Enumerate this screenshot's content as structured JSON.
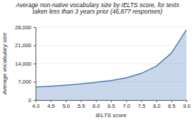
{
  "chart_data": {
    "type": "area",
    "title": "Average non-native vocabulary size by IELTS score, for tests taken less than 3 years prior (46,877 responses)",
    "x_label": "IELTS score",
    "y_label": "Average vocabulary size",
    "x": [
      4.0,
      4.5,
      5.0,
      5.5,
      6.0,
      6.5,
      7.0,
      7.5,
      8.0,
      8.5,
      9.0
    ],
    "values": [
      5000,
      5300,
      5700,
      6200,
      6800,
      7500,
      8500,
      10200,
      13000,
      18000,
      27000
    ],
    "color": "#4a7ebb",
    "xlim": [
      4.0,
      9.0
    ],
    "xticks": [
      {
        "value": 4,
        "label": "4.0"
      },
      4.5,
      {
        "value": 5,
        "label": "5.0"
      },
      5.5,
      {
        "value": 6,
        "label": "6.0"
      },
      6.5,
      {
        "value": 7,
        "label": "7.0"
      },
      7.5,
      {
        "value": 8,
        "label": "8.0"
      },
      8.5,
      {
        "value": 9,
        "label": "9.0"
      }
    ],
    "ylim": [
      0,
      28000
    ],
    "yticks": [
      0,
      {
        "value": 7000,
        "label": "7,000"
      },
      {
        "value": 14000,
        "label": "14,000"
      },
      {
        "value": 21000,
        "label": "21,000"
      },
      {
        "value": 28000,
        "label": "28,000"
      }
    ],
    "grid": true
  }
}
